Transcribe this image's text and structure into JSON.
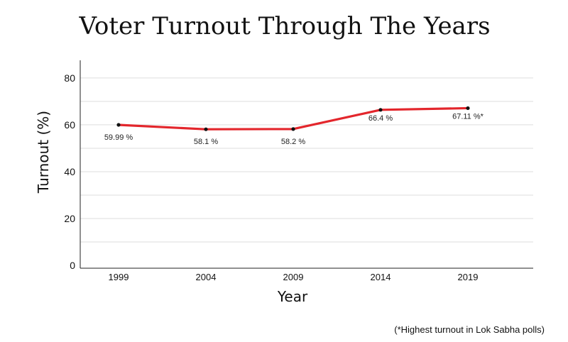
{
  "chart_data": {
    "type": "line",
    "title": "Voter Turnout Through The Years",
    "xlabel": "Year",
    "ylabel": "Turnout (%)",
    "categories": [
      "1999",
      "2004",
      "2009",
      "2014",
      "2019"
    ],
    "series": [
      {
        "values": [
          59.99,
          58.1,
          58.2,
          66.4,
          67.11
        ],
        "labels": [
          "59.99 %",
          "58.1 %",
          "58.2 %",
          "66.4 %",
          "67.11 %*"
        ],
        "color": "#e3262c"
      }
    ],
    "ylim": [
      0,
      88
    ],
    "yticks": [
      0,
      20,
      40,
      60,
      80
    ],
    "grid": true,
    "footnote": "(*Highest turnout in Lok Sabha polls)"
  }
}
